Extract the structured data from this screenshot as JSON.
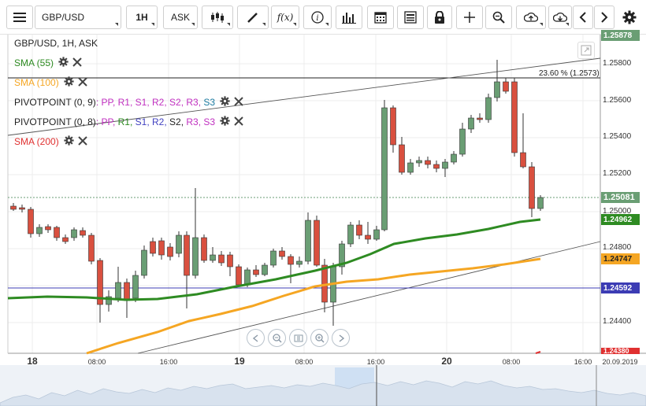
{
  "toolbar": {
    "symbol": "GBP/USD",
    "timeframe": "1H",
    "price_type": "ASK",
    "icons": [
      "menu-icon",
      "candles-icon",
      "draw-icon",
      "function-icon",
      "info-icon",
      "volume-bars-icon",
      "calendar-icon",
      "report-icon",
      "lock-icon",
      "crosshair-icon",
      "zoom-icon",
      "upload-icon",
      "download-icon",
      "chevron-left-icon",
      "chevron-right-icon",
      "settings-icon"
    ]
  },
  "chart": {
    "header": "GBP/USD, 1H, ASK",
    "fib_label": "23.60 % (1.2573)",
    "indicators": [
      {
        "label": "SMA (55)",
        "color": "#2e8b22"
      },
      {
        "label": "SMA (100)",
        "color": "#f5a623"
      },
      {
        "label": "SMA (200)",
        "color": "#e03030"
      }
    ],
    "pivot1": {
      "name": "PIVOTPOINT (0, 9)",
      "sep": ": ",
      "parts": [
        "PP",
        "R1",
        "S1",
        "R2",
        "S2",
        "R3",
        "S3"
      ],
      "colors": [
        "#c030c0",
        "#c030c0",
        "#c030c0",
        "#c030c0",
        "#c030c0",
        "#c030c0",
        "#1a7aa0"
      ]
    },
    "pivot2": {
      "name": "PIVOTPOINT (0, 8)",
      "sep": ": ",
      "parts": [
        "PP",
        "R1",
        "S1",
        "R2",
        "S2",
        "R3",
        "S3"
      ],
      "colors": [
        "#c030c0",
        "#2e8b22",
        "#4040c0",
        "#4040c0",
        "#222222",
        "#c030c0",
        "#c030c0"
      ]
    },
    "y_ticks": [
      "1.25800",
      "1.25600",
      "1.25400",
      "1.25200",
      "1.25000",
      "1.24800",
      "1.24400"
    ],
    "y_top_partial": "1.25878",
    "y_bottom_partial": "1.24380",
    "price_labels": [
      {
        "value": "1.25081",
        "color": "#6a9e74"
      },
      {
        "value": "1.24962",
        "color": "#2e8b22"
      },
      {
        "value": "1.24747",
        "color": "#f5a623"
      },
      {
        "value": "1.24592",
        "color": "#3c3cb4"
      }
    ],
    "x_days": [
      "18",
      "19",
      "20"
    ],
    "x_times": [
      "08:00",
      "16:00",
      "08:00",
      "16:00",
      "08:00",
      "16:00"
    ],
    "x_end_date": "20.09.2019",
    "colors": {
      "up": "#6a9e74",
      "down": "#d9503f",
      "sma55": "#2e8b22",
      "sma100": "#f5a623",
      "sma200": "#e03030",
      "hline": "#3c3cb4"
    }
  },
  "nav_buttons": [
    "rewind-icon",
    "zoom-out-icon",
    "pause-icon",
    "zoom-in-icon",
    "forward-icon"
  ]
}
